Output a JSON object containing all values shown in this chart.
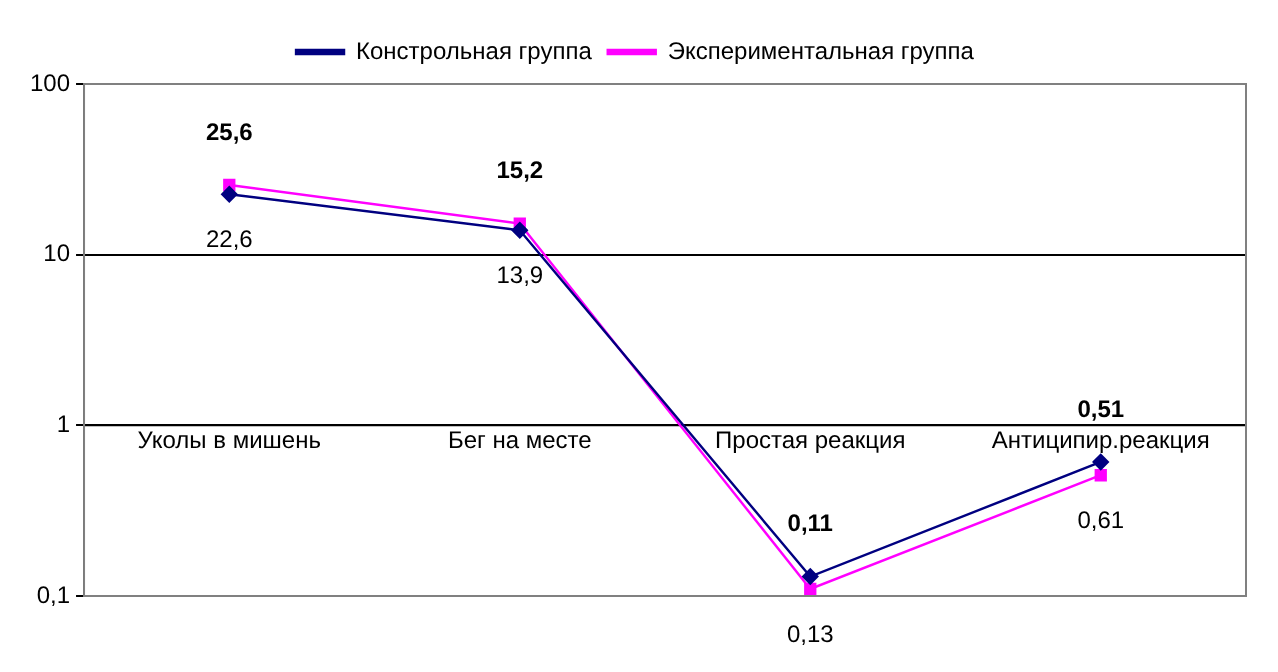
{
  "chart_data": {
    "type": "line",
    "categories": [
      "Уколы в мишень",
      "Бег на месте",
      "Простая реакция",
      "Антиципир.реакция"
    ],
    "series": [
      {
        "name": "Констрольная группа",
        "color": "#000080",
        "marker": "diamond",
        "values": [
          22.6,
          13.9,
          0.13,
          0.61
        ],
        "value_labels": [
          "22,6",
          "13,9",
          "0,13",
          "0,61"
        ]
      },
      {
        "name": "Экспериментальная группа",
        "color": "#ff00ff",
        "marker": "square",
        "values": [
          25.6,
          15.2,
          0.11,
          0.51
        ],
        "value_labels": [
          "25,6",
          "15,2",
          "0,11",
          "0,51"
        ]
      }
    ],
    "log": "y",
    "ylim": [
      0.1,
      100
    ],
    "yticks": [
      {
        "value": 0.1,
        "label": "0,1"
      },
      1,
      10,
      100
    ],
    "grid": "y",
    "legend": "top"
  }
}
